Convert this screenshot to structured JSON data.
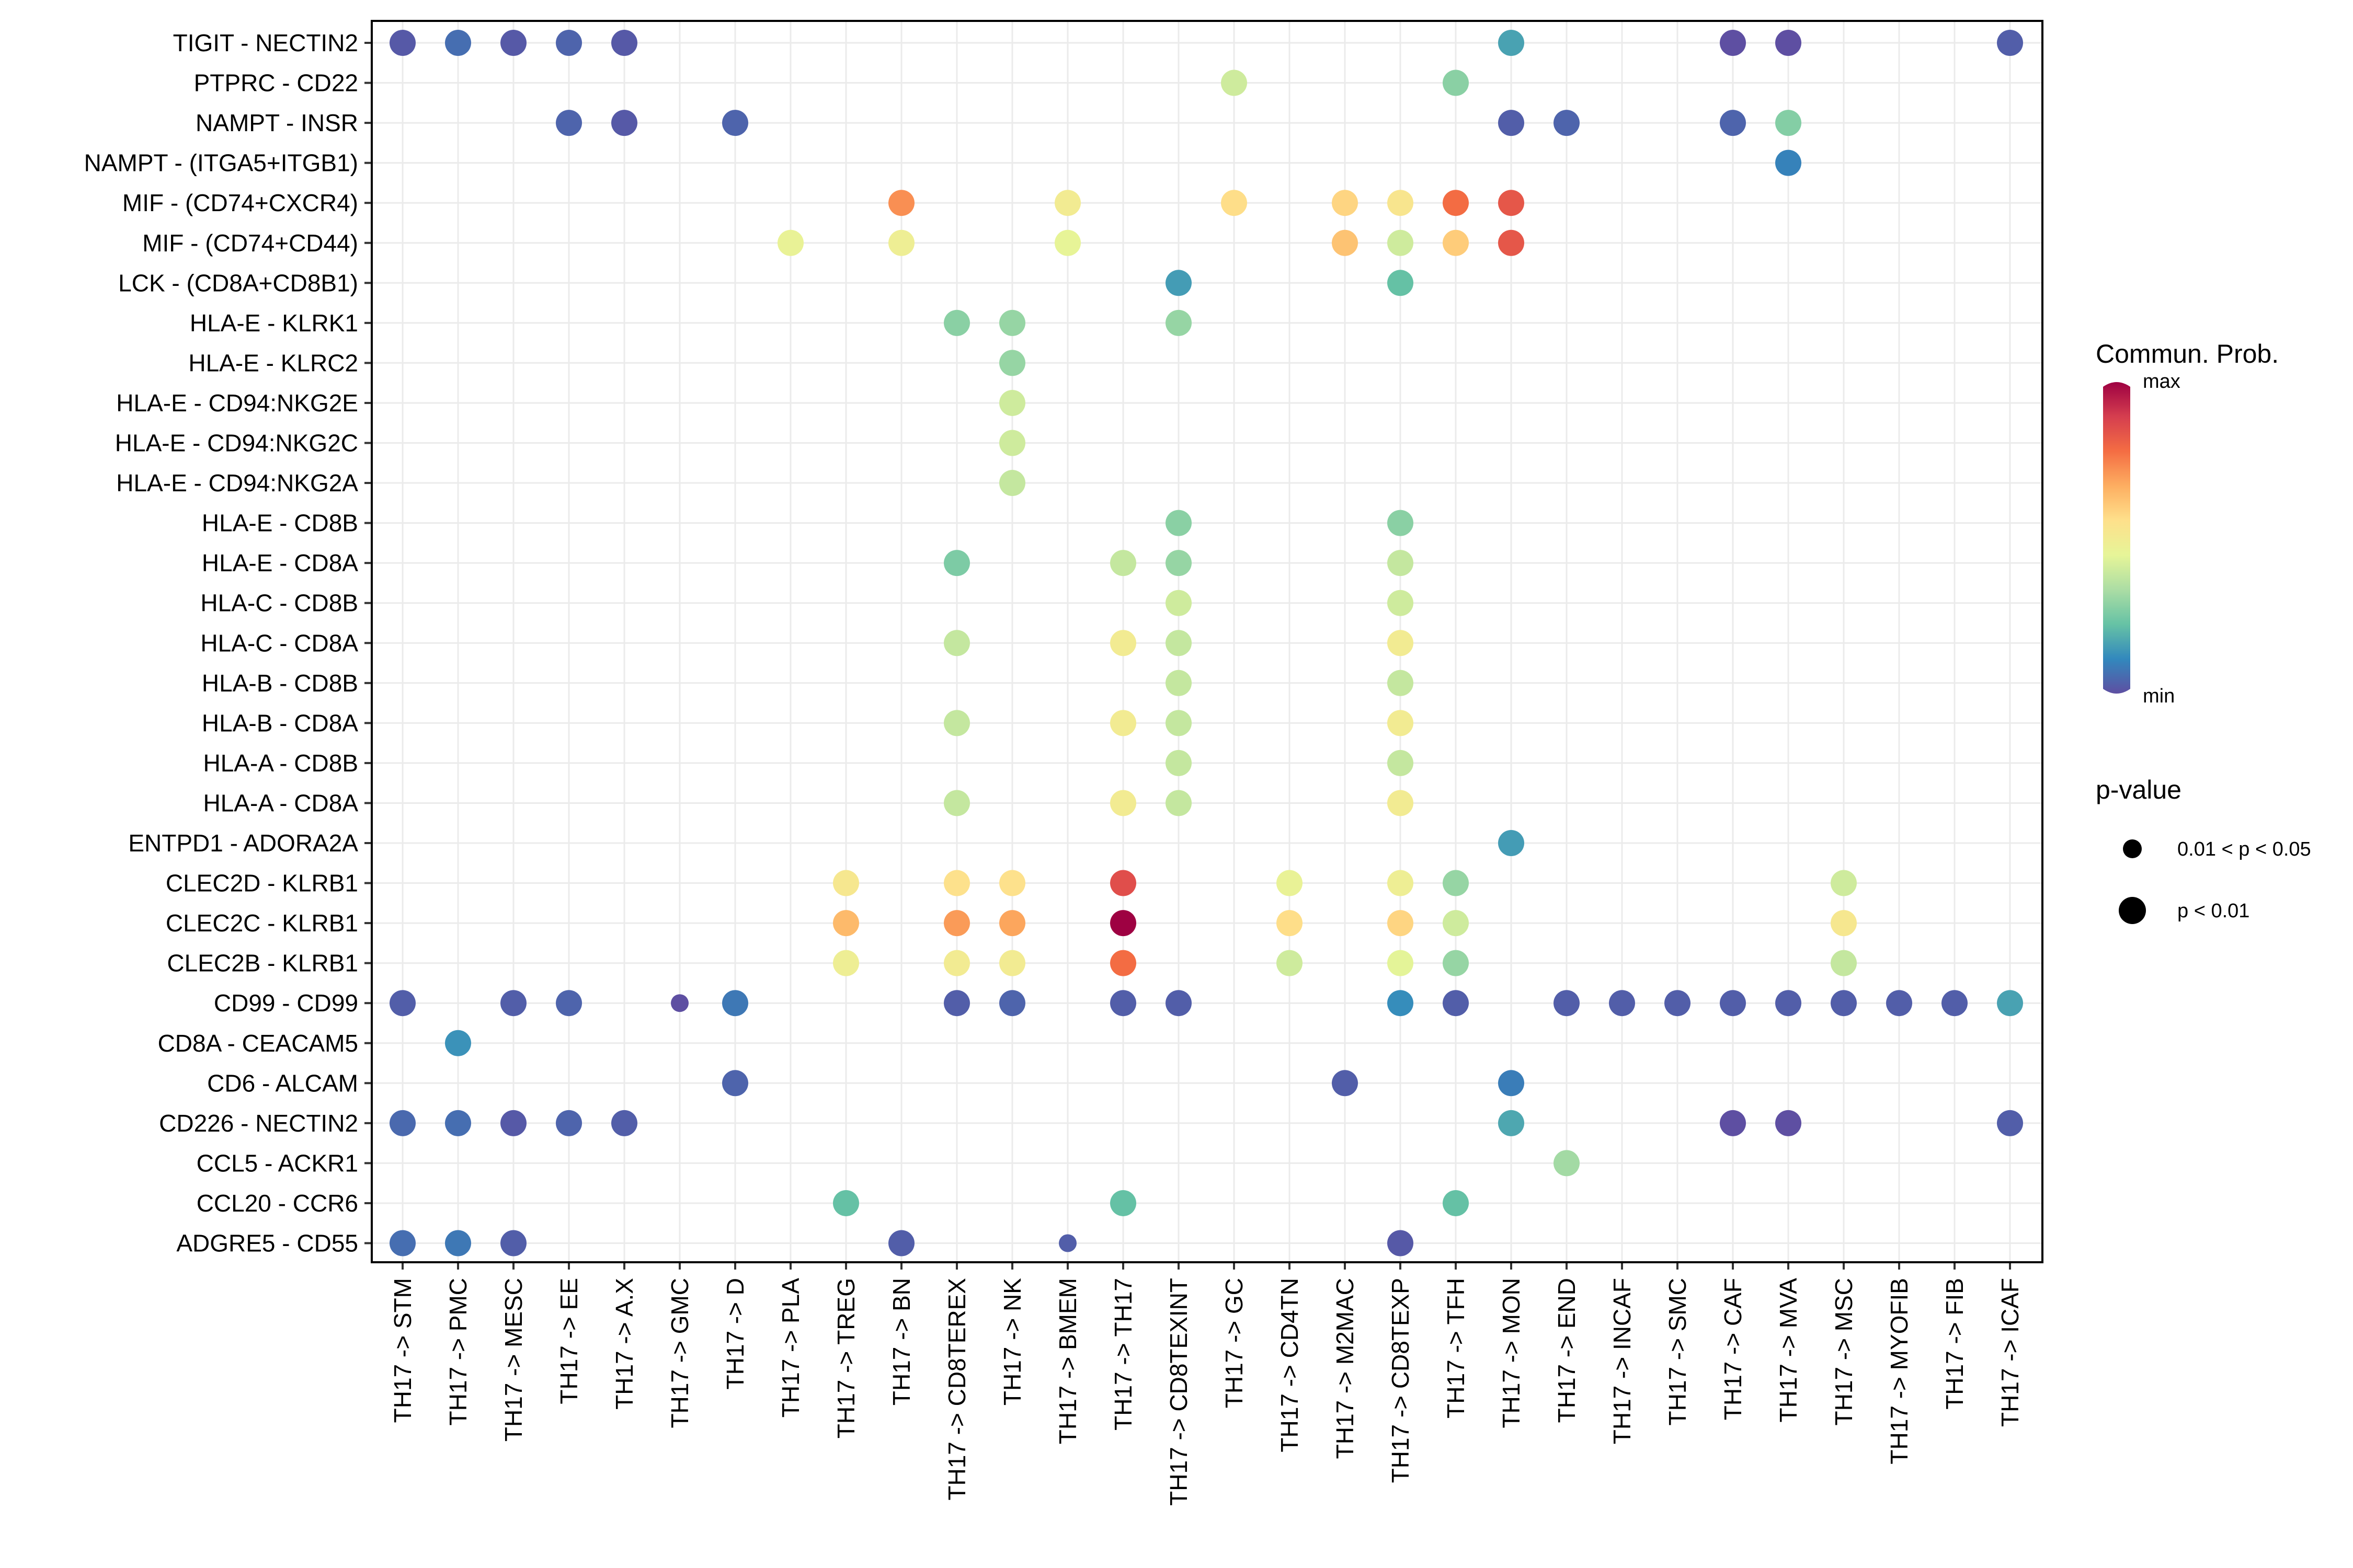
{
  "chart_data": {
    "type": "dot-plot",
    "source": "TH17",
    "x_categories": [
      "TH17 -> STM",
      "TH17 -> PMC",
      "TH17 -> MESC",
      "TH17 -> EE",
      "TH17 -> A.X",
      "TH17 -> GMC",
      "TH17 -> D",
      "TH17 -> PLA",
      "TH17 -> TREG",
      "TH17 -> BN",
      "TH17 -> CD8TEREX",
      "TH17 -> NK",
      "TH17 -> BMEM",
      "TH17 -> TH17",
      "TH17 -> CD8TEXINT",
      "TH17 -> GC",
      "TH17 -> CD4TN",
      "TH17 -> M2MAC",
      "TH17 -> CD8TEXP",
      "TH17 -> TFH",
      "TH17 -> MON",
      "TH17 -> END",
      "TH17 -> INCAF",
      "TH17 -> SMC",
      "TH17 -> CAF",
      "TH17 -> MVA",
      "TH17 -> MSC",
      "TH17 -> MYOFIB",
      "TH17 -> FIB",
      "TH17 -> ICAF"
    ],
    "y_categories": [
      "TIGIT - NECTIN2",
      "PTPRC - CD22",
      "NAMPT - INSR",
      "NAMPT - (ITGA5+ITGB1)",
      "MIF - (CD74+CXCR4)",
      "MIF - (CD74+CD44)",
      "LCK - (CD8A+CD8B1)",
      "HLA-E - KLRK1",
      "HLA-E - KLRC2",
      "HLA-E - CD94:NKG2E",
      "HLA-E - CD94:NKG2C",
      "HLA-E - CD94:NKG2A",
      "HLA-E - CD8B",
      "HLA-E - CD8A",
      "HLA-C - CD8B",
      "HLA-C - CD8A",
      "HLA-B - CD8B",
      "HLA-B - CD8A",
      "HLA-A - CD8B",
      "HLA-A - CD8A",
      "ENTPD1 - ADORA2A",
      "CLEC2D - KLRB1",
      "CLEC2C - KLRB1",
      "CLEC2B - KLRB1",
      "CD99 - CD99",
      "CD8A - CEACAM5",
      "CD6 - ALCAM",
      "CD226 - NECTIN2",
      "CCL5 - ACKR1",
      "CCL20 - CCR6",
      "ADGRE5 - CD55"
    ],
    "value_scale": "relative communication probability, 0 = min, 1 = max",
    "pvalue_classes": [
      "0.01 < p < 0.05",
      "p < 0.01"
    ],
    "points": [
      {
        "x": 0,
        "y": 0,
        "v": 0.02,
        "p": 1
      },
      {
        "x": 1,
        "y": 0,
        "v": 0.06,
        "p": 1
      },
      {
        "x": 2,
        "y": 0,
        "v": 0.02,
        "p": 1
      },
      {
        "x": 3,
        "y": 0,
        "v": 0.04,
        "p": 1
      },
      {
        "x": 4,
        "y": 0,
        "v": 0.02,
        "p": 1
      },
      {
        "x": 20,
        "y": 0,
        "v": 0.16,
        "p": 1
      },
      {
        "x": 24,
        "y": 0,
        "v": 0.0,
        "p": 1
      },
      {
        "x": 25,
        "y": 0,
        "v": 0.0,
        "p": 1
      },
      {
        "x": 29,
        "y": 0,
        "v": 0.03,
        "p": 1
      },
      {
        "x": 15,
        "y": 1,
        "v": 0.4,
        "p": 1
      },
      {
        "x": 19,
        "y": 1,
        "v": 0.28,
        "p": 1
      },
      {
        "x": 3,
        "y": 2,
        "v": 0.04,
        "p": 1
      },
      {
        "x": 4,
        "y": 2,
        "v": 0.02,
        "p": 1
      },
      {
        "x": 6,
        "y": 2,
        "v": 0.04,
        "p": 1
      },
      {
        "x": 20,
        "y": 2,
        "v": 0.03,
        "p": 1
      },
      {
        "x": 21,
        "y": 2,
        "v": 0.04,
        "p": 1
      },
      {
        "x": 24,
        "y": 2,
        "v": 0.04,
        "p": 1
      },
      {
        "x": 25,
        "y": 2,
        "v": 0.27,
        "p": 1
      },
      {
        "x": 25,
        "y": 3,
        "v": 0.1,
        "p": 1
      },
      {
        "x": 9,
        "y": 4,
        "v": 0.72,
        "p": 1
      },
      {
        "x": 12,
        "y": 4,
        "v": 0.5,
        "p": 1
      },
      {
        "x": 15,
        "y": 4,
        "v": 0.56,
        "p": 1
      },
      {
        "x": 17,
        "y": 4,
        "v": 0.58,
        "p": 1
      },
      {
        "x": 18,
        "y": 4,
        "v": 0.53,
        "p": 1
      },
      {
        "x": 19,
        "y": 4,
        "v": 0.78,
        "p": 1
      },
      {
        "x": 20,
        "y": 4,
        "v": 0.83,
        "p": 1
      },
      {
        "x": 7,
        "y": 5,
        "v": 0.46,
        "p": 1
      },
      {
        "x": 9,
        "y": 5,
        "v": 0.48,
        "p": 1
      },
      {
        "x": 12,
        "y": 5,
        "v": 0.45,
        "p": 1
      },
      {
        "x": 17,
        "y": 5,
        "v": 0.62,
        "p": 1
      },
      {
        "x": 18,
        "y": 5,
        "v": 0.4,
        "p": 1
      },
      {
        "x": 19,
        "y": 5,
        "v": 0.6,
        "p": 1
      },
      {
        "x": 20,
        "y": 5,
        "v": 0.83,
        "p": 1
      },
      {
        "x": 14,
        "y": 6,
        "v": 0.15,
        "p": 1
      },
      {
        "x": 18,
        "y": 6,
        "v": 0.22,
        "p": 1
      },
      {
        "x": 10,
        "y": 7,
        "v": 0.28,
        "p": 1
      },
      {
        "x": 11,
        "y": 7,
        "v": 0.3,
        "p": 1
      },
      {
        "x": 14,
        "y": 7,
        "v": 0.3,
        "p": 1
      },
      {
        "x": 11,
        "y": 8,
        "v": 0.3,
        "p": 1
      },
      {
        "x": 11,
        "y": 9,
        "v": 0.4,
        "p": 1
      },
      {
        "x": 11,
        "y": 10,
        "v": 0.4,
        "p": 1
      },
      {
        "x": 11,
        "y": 11,
        "v": 0.38,
        "p": 1
      },
      {
        "x": 14,
        "y": 12,
        "v": 0.28,
        "p": 1
      },
      {
        "x": 18,
        "y": 12,
        "v": 0.28,
        "p": 1
      },
      {
        "x": 10,
        "y": 13,
        "v": 0.26,
        "p": 1
      },
      {
        "x": 13,
        "y": 13,
        "v": 0.38,
        "p": 1
      },
      {
        "x": 14,
        "y": 13,
        "v": 0.3,
        "p": 1
      },
      {
        "x": 18,
        "y": 13,
        "v": 0.38,
        "p": 1
      },
      {
        "x": 14,
        "y": 14,
        "v": 0.4,
        "p": 1
      },
      {
        "x": 18,
        "y": 14,
        "v": 0.4,
        "p": 1
      },
      {
        "x": 10,
        "y": 15,
        "v": 0.38,
        "p": 1
      },
      {
        "x": 13,
        "y": 15,
        "v": 0.5,
        "p": 1
      },
      {
        "x": 14,
        "y": 15,
        "v": 0.38,
        "p": 1
      },
      {
        "x": 18,
        "y": 15,
        "v": 0.5,
        "p": 1
      },
      {
        "x": 14,
        "y": 16,
        "v": 0.38,
        "p": 1
      },
      {
        "x": 18,
        "y": 16,
        "v": 0.38,
        "p": 1
      },
      {
        "x": 10,
        "y": 17,
        "v": 0.38,
        "p": 1
      },
      {
        "x": 13,
        "y": 17,
        "v": 0.5,
        "p": 1
      },
      {
        "x": 14,
        "y": 17,
        "v": 0.38,
        "p": 1
      },
      {
        "x": 18,
        "y": 17,
        "v": 0.5,
        "p": 1
      },
      {
        "x": 14,
        "y": 18,
        "v": 0.38,
        "p": 1
      },
      {
        "x": 18,
        "y": 18,
        "v": 0.38,
        "p": 1
      },
      {
        "x": 10,
        "y": 19,
        "v": 0.38,
        "p": 1
      },
      {
        "x": 13,
        "y": 19,
        "v": 0.5,
        "p": 1
      },
      {
        "x": 14,
        "y": 19,
        "v": 0.38,
        "p": 1
      },
      {
        "x": 18,
        "y": 19,
        "v": 0.5,
        "p": 1
      },
      {
        "x": 20,
        "y": 20,
        "v": 0.15,
        "p": 1
      },
      {
        "x": 8,
        "y": 21,
        "v": 0.52,
        "p": 1
      },
      {
        "x": 10,
        "y": 21,
        "v": 0.55,
        "p": 1
      },
      {
        "x": 11,
        "y": 21,
        "v": 0.55,
        "p": 1
      },
      {
        "x": 13,
        "y": 21,
        "v": 0.85,
        "p": 1
      },
      {
        "x": 16,
        "y": 21,
        "v": 0.46,
        "p": 1
      },
      {
        "x": 18,
        "y": 21,
        "v": 0.48,
        "p": 1
      },
      {
        "x": 19,
        "y": 21,
        "v": 0.3,
        "p": 1
      },
      {
        "x": 26,
        "y": 21,
        "v": 0.4,
        "p": 1
      },
      {
        "x": 8,
        "y": 22,
        "v": 0.64,
        "p": 1
      },
      {
        "x": 10,
        "y": 22,
        "v": 0.7,
        "p": 1
      },
      {
        "x": 11,
        "y": 22,
        "v": 0.68,
        "p": 1
      },
      {
        "x": 13,
        "y": 22,
        "v": 1.0,
        "p": 1
      },
      {
        "x": 16,
        "y": 22,
        "v": 0.56,
        "p": 1
      },
      {
        "x": 18,
        "y": 22,
        "v": 0.58,
        "p": 1
      },
      {
        "x": 19,
        "y": 22,
        "v": 0.4,
        "p": 1
      },
      {
        "x": 26,
        "y": 22,
        "v": 0.52,
        "p": 1
      },
      {
        "x": 8,
        "y": 23,
        "v": 0.48,
        "p": 1
      },
      {
        "x": 10,
        "y": 23,
        "v": 0.5,
        "p": 1
      },
      {
        "x": 11,
        "y": 23,
        "v": 0.5,
        "p": 1
      },
      {
        "x": 13,
        "y": 23,
        "v": 0.78,
        "p": 1
      },
      {
        "x": 16,
        "y": 23,
        "v": 0.4,
        "p": 1
      },
      {
        "x": 18,
        "y": 23,
        "v": 0.44,
        "p": 1
      },
      {
        "x": 19,
        "y": 23,
        "v": 0.3,
        "p": 1
      },
      {
        "x": 26,
        "y": 23,
        "v": 0.38,
        "p": 1
      },
      {
        "x": 0,
        "y": 24,
        "v": 0.03,
        "p": 1
      },
      {
        "x": 2,
        "y": 24,
        "v": 0.03,
        "p": 1
      },
      {
        "x": 3,
        "y": 24,
        "v": 0.04,
        "p": 1
      },
      {
        "x": 5,
        "y": 24,
        "v": 0.0,
        "p": 0
      },
      {
        "x": 6,
        "y": 24,
        "v": 0.08,
        "p": 1
      },
      {
        "x": 10,
        "y": 24,
        "v": 0.03,
        "p": 1
      },
      {
        "x": 11,
        "y": 24,
        "v": 0.04,
        "p": 1
      },
      {
        "x": 13,
        "y": 24,
        "v": 0.03,
        "p": 1
      },
      {
        "x": 14,
        "y": 24,
        "v": 0.03,
        "p": 1
      },
      {
        "x": 18,
        "y": 24,
        "v": 0.12,
        "p": 1
      },
      {
        "x": 19,
        "y": 24,
        "v": 0.03,
        "p": 1
      },
      {
        "x": 21,
        "y": 24,
        "v": 0.03,
        "p": 1
      },
      {
        "x": 22,
        "y": 24,
        "v": 0.03,
        "p": 1
      },
      {
        "x": 23,
        "y": 24,
        "v": 0.03,
        "p": 1
      },
      {
        "x": 24,
        "y": 24,
        "v": 0.03,
        "p": 1
      },
      {
        "x": 25,
        "y": 24,
        "v": 0.03,
        "p": 1
      },
      {
        "x": 26,
        "y": 24,
        "v": 0.03,
        "p": 1
      },
      {
        "x": 27,
        "y": 24,
        "v": 0.03,
        "p": 1
      },
      {
        "x": 28,
        "y": 24,
        "v": 0.03,
        "p": 1
      },
      {
        "x": 29,
        "y": 24,
        "v": 0.16,
        "p": 1
      },
      {
        "x": 1,
        "y": 25,
        "v": 0.13,
        "p": 1
      },
      {
        "x": 6,
        "y": 26,
        "v": 0.04,
        "p": 1
      },
      {
        "x": 17,
        "y": 26,
        "v": 0.03,
        "p": 1
      },
      {
        "x": 20,
        "y": 26,
        "v": 0.09,
        "p": 1
      },
      {
        "x": 0,
        "y": 27,
        "v": 0.05,
        "p": 1
      },
      {
        "x": 1,
        "y": 27,
        "v": 0.06,
        "p": 1
      },
      {
        "x": 2,
        "y": 27,
        "v": 0.02,
        "p": 1
      },
      {
        "x": 3,
        "y": 27,
        "v": 0.04,
        "p": 1
      },
      {
        "x": 4,
        "y": 27,
        "v": 0.03,
        "p": 1
      },
      {
        "x": 20,
        "y": 27,
        "v": 0.17,
        "p": 1
      },
      {
        "x": 24,
        "y": 27,
        "v": 0.0,
        "p": 1
      },
      {
        "x": 25,
        "y": 27,
        "v": 0.0,
        "p": 1
      },
      {
        "x": 29,
        "y": 27,
        "v": 0.03,
        "p": 1
      },
      {
        "x": 21,
        "y": 28,
        "v": 0.32,
        "p": 1
      },
      {
        "x": 8,
        "y": 29,
        "v": 0.22,
        "p": 1
      },
      {
        "x": 13,
        "y": 29,
        "v": 0.22,
        "p": 1
      },
      {
        "x": 19,
        "y": 29,
        "v": 0.22,
        "p": 1
      },
      {
        "x": 0,
        "y": 30,
        "v": 0.06,
        "p": 1
      },
      {
        "x": 1,
        "y": 30,
        "v": 0.08,
        "p": 1
      },
      {
        "x": 2,
        "y": 30,
        "v": 0.03,
        "p": 1
      },
      {
        "x": 9,
        "y": 30,
        "v": 0.03,
        "p": 1
      },
      {
        "x": 12,
        "y": 30,
        "v": 0.03,
        "p": 0
      },
      {
        "x": 18,
        "y": 30,
        "v": 0.02,
        "p": 1
      }
    ],
    "legend": {
      "color_title": "Commun. Prob.",
      "color_max_label": "max",
      "color_min_label": "min",
      "color_stops": [
        "#5E4FA2",
        "#3288BD",
        "#66C2A5",
        "#ABDDA4",
        "#E6F598",
        "#FEE08B",
        "#FDAE61",
        "#F46D43",
        "#D53E4F",
        "#9E0142"
      ],
      "size_title": "p-value",
      "size_labels": [
        "0.01 < p < 0.05",
        "p < 0.01"
      ]
    }
  }
}
